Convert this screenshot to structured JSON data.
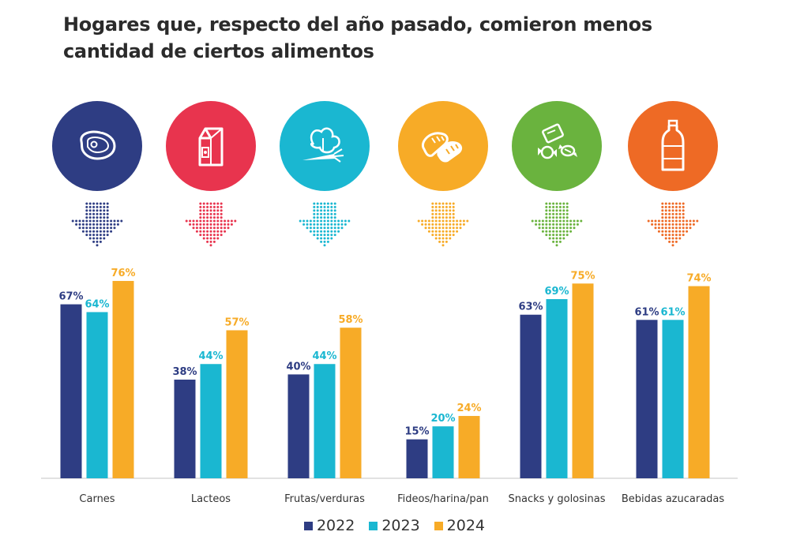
{
  "title": "Hogares que, respecto del año pasado, comieron menos cantidad de ciertos alimentos",
  "colors": {
    "2022": "#2e3d83",
    "2023": "#1ab7d1",
    "2024": "#f7ab27",
    "title": "#2b2b2b"
  },
  "icons": [
    {
      "name": "steak-icon",
      "color": "#2e3d83"
    },
    {
      "name": "milk-carton-icon",
      "color": "#e8344e"
    },
    {
      "name": "vegetables-icon",
      "color": "#1ab7d1"
    },
    {
      "name": "bread-icon",
      "color": "#f7ab27"
    },
    {
      "name": "candy-icon",
      "color": "#6ab33e"
    },
    {
      "name": "bottle-icon",
      "color": "#ee6a25"
    }
  ],
  "chart_data": {
    "type": "bar",
    "title": "Hogares que, respecto del año pasado, comieron menos cantidad de ciertos alimentos",
    "categories": [
      "Carnes",
      "Lacteos",
      "Frutas/verduras",
      "Fideos/harina/pan",
      "Snacks y golosinas",
      "Bebidas azucaradas"
    ],
    "series": [
      {
        "name": "2022",
        "values": [
          67,
          38,
          40,
          15,
          63,
          61
        ],
        "labels": [
          "67%",
          "38%",
          "40%",
          "15%",
          "63%",
          "61%"
        ]
      },
      {
        "name": "2023",
        "values": [
          64,
          44,
          44,
          20,
          69,
          61
        ],
        "labels": [
          "64%",
          "44%",
          "44%",
          "20%",
          "69%",
          "61%"
        ]
      },
      {
        "name": "2024",
        "values": [
          76,
          57,
          58,
          24,
          75,
          74
        ],
        "labels": [
          "76%",
          "57%",
          "58%",
          "24%",
          "75%",
          "74%"
        ]
      }
    ],
    "xlabel": "",
    "ylabel": "",
    "ylim": [
      0,
      100
    ],
    "grid": false,
    "legend": "bottom-center"
  }
}
